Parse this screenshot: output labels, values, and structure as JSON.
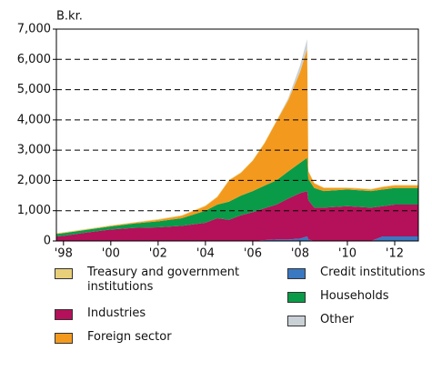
{
  "chart_data": {
    "type": "stacked-area",
    "y_unit": "B.kr.",
    "x": [
      1997.7,
      1998,
      1999,
      2000,
      2001,
      2002,
      2003,
      2004,
      2004.5,
      2005,
      2005.5,
      2006,
      2006.5,
      2007,
      2007.5,
      2008,
      2008.3,
      2008.35,
      2008.6,
      2009,
      2010,
      2011,
      2011.5,
      2012,
      2013
    ],
    "series": [
      {
        "name": "Credit institutions",
        "color": "#3a78c2",
        "values": [
          0,
          0,
          0,
          0,
          0,
          0,
          0,
          0,
          0,
          0,
          0,
          0,
          30,
          50,
          50,
          80,
          150,
          50,
          0,
          0,
          0,
          0,
          150,
          150,
          150
        ]
      },
      {
        "name": "Industries",
        "color": "#b5105a",
        "values": [
          150,
          170,
          280,
          380,
          430,
          450,
          500,
          600,
          750,
          700,
          850,
          950,
          1050,
          1150,
          1350,
          1500,
          1500,
          1300,
          1100,
          1100,
          1150,
          1100,
          1000,
          1050,
          1050
        ]
      },
      {
        "name": "Households",
        "color": "#0a9b48",
        "values": [
          80,
          90,
          90,
          100,
          150,
          200,
          250,
          400,
          450,
          600,
          650,
          700,
          750,
          800,
          900,
          1000,
          1100,
          700,
          650,
          550,
          550,
          550,
          550,
          550,
          550
        ]
      },
      {
        "name": "Foreign sector",
        "color": "#f39a1e",
        "values": [
          10,
          10,
          10,
          20,
          20,
          50,
          80,
          150,
          250,
          700,
          750,
          1000,
          1400,
          1950,
          2350,
          3000,
          3600,
          250,
          150,
          100,
          50,
          50,
          80,
          80,
          80
        ]
      },
      {
        "name": "Treasury and government institutions",
        "color": "#e8cf7a",
        "values": [
          20,
          20,
          20,
          20,
          20,
          20,
          20,
          20,
          20,
          20,
          20,
          20,
          20,
          20,
          20,
          20,
          20,
          20,
          20,
          20,
          20,
          20,
          20,
          20,
          20
        ]
      },
      {
        "name": "Other",
        "color": "#c9d0d6",
        "values": [
          0,
          0,
          0,
          0,
          0,
          0,
          0,
          0,
          0,
          0,
          0,
          0,
          0,
          0,
          50,
          200,
          300,
          0,
          0,
          0,
          0,
          0,
          0,
          0,
          0
        ]
      }
    ],
    "xlim": [
      1997.7,
      2013.0
    ],
    "xticks": [
      {
        "value": 1998,
        "label": "'98"
      },
      {
        "value": 2000,
        "label": "'00"
      },
      {
        "value": 2002,
        "label": "'02"
      },
      {
        "value": 2004,
        "label": "'04"
      },
      {
        "value": 2006,
        "label": "'06"
      },
      {
        "value": 2008,
        "label": "'08"
      },
      {
        "value": 2010,
        "label": "'10"
      },
      {
        "value": 2012,
        "label": "'12"
      }
    ],
    "ylim": [
      0,
      7000
    ],
    "yticks": [
      0,
      {
        "value": 1000,
        "label": "1,000"
      },
      {
        "value": 2000,
        "label": "2,000"
      },
      {
        "value": 3000,
        "label": "3,000"
      },
      {
        "value": 4000,
        "label": "4,000"
      },
      {
        "value": 5000,
        "label": "5,000"
      },
      {
        "value": 6000,
        "label": "6,000"
      },
      {
        "value": 7000,
        "label": "7,000"
      }
    ],
    "grid": true
  }
}
